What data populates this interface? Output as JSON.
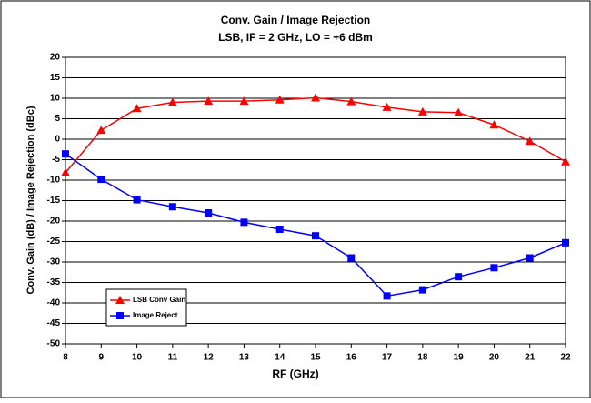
{
  "chart_data": {
    "type": "line",
    "title": "Conv. Gain / Image Rejection",
    "subtitle": "LSB,  IF = 2 GHz, LO = +6 dBm",
    "x_label": "RF (GHz)",
    "y_label": "Conv. Gain (dB)  / Image Rejection (dBc)",
    "x": [
      8,
      9,
      10,
      11,
      12,
      13,
      14,
      15,
      16,
      17,
      18,
      19,
      20,
      21,
      22
    ],
    "series": [
      {
        "name": "LSB Conv  Gain",
        "color": "#ff0000",
        "marker": "triangle",
        "values": [
          -8.2,
          2.2,
          7.5,
          9,
          9.3,
          9.3,
          9.6,
          10.1,
          9.2,
          7.8,
          6.7,
          6.5,
          3.5,
          -0.5,
          -5.5
        ]
      },
      {
        "name": "Image Reject",
        "color": "#0000ff",
        "marker": "square",
        "values": [
          -3.6,
          -9.8,
          -14.8,
          -16.5,
          -18,
          -20.3,
          -22,
          -23.6,
          -29,
          -38.3,
          -36.8,
          -33.6,
          -31.4,
          -29,
          -25.3
        ]
      }
    ],
    "xlim": [
      8,
      22
    ],
    "xticks": [
      8,
      9,
      10,
      11,
      12,
      13,
      14,
      15,
      16,
      17,
      18,
      19,
      20,
      21,
      22
    ],
    "ylim": [
      -50,
      20
    ],
    "yticks": [
      -50,
      -45,
      -40,
      -35,
      -30,
      -25,
      -20,
      -15,
      -10,
      -5,
      0,
      5,
      10,
      15,
      20
    ],
    "grid": true
  }
}
